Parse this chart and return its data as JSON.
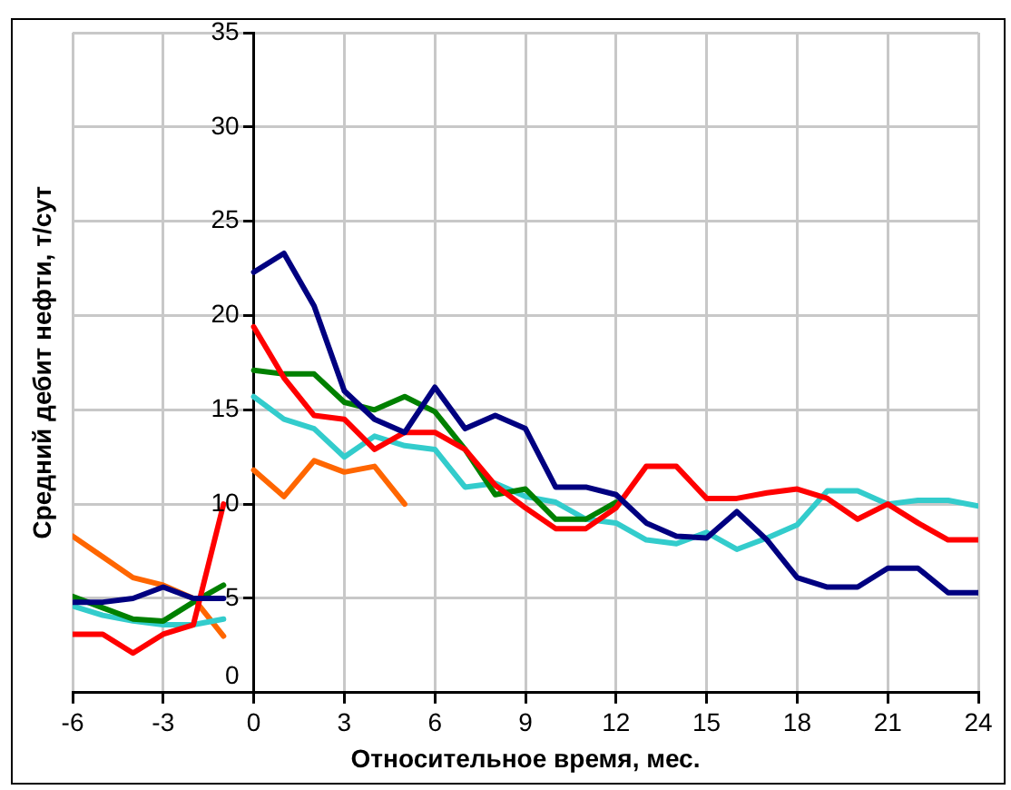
{
  "chart_data": {
    "type": "line",
    "xlabel": "Относительное время, мес.",
    "ylabel": "Средний дебит нефти, т/сут",
    "xlim": [
      -6,
      24
    ],
    "xticks": [
      -6,
      -3,
      0,
      3,
      6,
      9,
      12,
      15,
      18,
      21,
      24
    ],
    "ylim": [
      0,
      35
    ],
    "yticks": [
      0,
      5,
      10,
      15,
      20,
      25,
      30,
      35
    ],
    "grid": true,
    "legend": false,
    "marker": "none",
    "line_style": "solid",
    "series": [
      {
        "color": "#000080",
        "x": [
          -6,
          -5,
          -4,
          -3,
          -2,
          -1
        ],
        "values": [
          4.8,
          4.8,
          5.0,
          5.6,
          5.0,
          5.0
        ]
      },
      {
        "color": "#000080",
        "x": [
          0,
          1,
          2,
          3,
          4,
          5,
          6,
          7,
          8,
          9,
          10,
          11,
          12,
          13,
          14,
          15,
          16,
          17,
          18,
          19,
          20,
          21,
          22,
          23,
          24
        ],
        "values": [
          22.3,
          23.3,
          20.5,
          16.0,
          14.5,
          13.8,
          16.2,
          14.0,
          14.7,
          14.0,
          10.9,
          10.9,
          10.5,
          9.0,
          8.3,
          8.2,
          9.6,
          8.1,
          6.1,
          5.6,
          5.6,
          6.6,
          6.6,
          5.3,
          5.3
        ]
      },
      {
        "color": "#ff0000",
        "x": [
          -6,
          -5,
          -4,
          -3,
          -2,
          -1
        ],
        "values": [
          3.1,
          3.1,
          2.1,
          3.1,
          3.6,
          10.0
        ]
      },
      {
        "color": "#ff0000",
        "x": [
          0,
          1,
          2,
          3,
          4,
          5,
          6,
          7,
          8,
          9,
          10,
          11,
          12,
          13,
          14,
          15,
          16,
          17,
          18,
          19,
          20,
          21,
          22,
          23,
          24
        ],
        "values": [
          19.4,
          16.7,
          14.7,
          14.5,
          12.9,
          13.8,
          13.8,
          12.9,
          11.0,
          9.8,
          8.7,
          8.7,
          9.8,
          12.0,
          12.0,
          10.3,
          10.3,
          10.6,
          10.8,
          10.3,
          9.2,
          10.0,
          9.0,
          8.1,
          8.1
        ]
      },
      {
        "color": "#008000",
        "x": [
          -6,
          -5,
          -4,
          -3,
          -2,
          -1
        ],
        "values": [
          5.1,
          4.5,
          3.9,
          3.8,
          4.8,
          5.7
        ]
      },
      {
        "color": "#008000",
        "x": [
          0,
          1,
          2,
          3,
          4,
          5,
          6,
          7,
          8,
          9,
          10,
          11,
          12
        ],
        "values": [
          17.1,
          16.9,
          16.9,
          15.4,
          15.0,
          15.7,
          14.9,
          12.9,
          10.5,
          10.8,
          9.2,
          9.2,
          10.1
        ]
      },
      {
        "color": "#33cccc",
        "x": [
          -6,
          -5,
          -4,
          -3,
          -2,
          -1
        ],
        "values": [
          4.6,
          4.1,
          3.8,
          3.6,
          3.6,
          3.9
        ]
      },
      {
        "color": "#33cccc",
        "x": [
          0,
          1,
          2,
          3,
          4,
          5,
          6,
          7,
          8,
          9,
          10,
          11,
          12,
          13,
          14,
          15,
          16,
          17,
          18,
          19,
          20,
          21,
          22,
          23,
          24
        ],
        "values": [
          15.7,
          14.5,
          14.0,
          12.5,
          13.6,
          13.1,
          12.9,
          10.9,
          11.1,
          10.4,
          10.1,
          9.2,
          9.0,
          8.1,
          7.9,
          8.5,
          7.6,
          8.2,
          8.9,
          10.7,
          10.7,
          10.0,
          10.2,
          10.2,
          9.9
        ]
      },
      {
        "color": "#ff6600",
        "x": [
          -6,
          -5,
          -4,
          -3,
          -2,
          -1
        ],
        "values": [
          8.3,
          7.2,
          6.1,
          5.7,
          5.0,
          3.0
        ]
      },
      {
        "color": "#ff6600",
        "x": [
          0,
          1,
          2,
          3,
          4,
          5
        ],
        "values": [
          11.8,
          10.4,
          12.3,
          11.7,
          12.0,
          10.0
        ]
      }
    ]
  }
}
